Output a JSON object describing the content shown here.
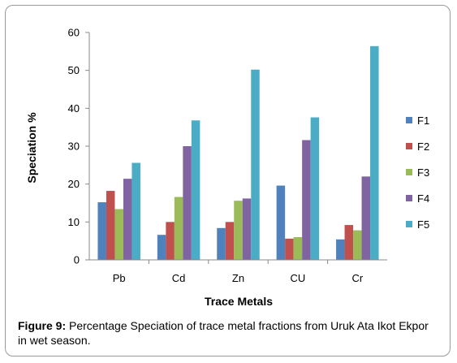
{
  "caption": {
    "label": "Figure 9:",
    "text": " Percentage Speciation of trace metal fractions from Uruk Ata Ikot Ekpor in wet season."
  },
  "chart_data": {
    "type": "bar",
    "title": "",
    "xlabel": "Trace Metals",
    "ylabel": "Speciation %",
    "ylim": [
      0,
      60
    ],
    "yticks": [
      0,
      10,
      20,
      30,
      40,
      50,
      60
    ],
    "grid": false,
    "legend_position": "right",
    "categories": [
      "Pb",
      "Cd",
      "Zn",
      "CU",
      "Cr"
    ],
    "series": [
      {
        "name": "F1",
        "color": "#4F81BD",
        "values": [
          15.2,
          6.6,
          8.4,
          19.6,
          5.4
        ]
      },
      {
        "name": "F2",
        "color": "#C0504D",
        "values": [
          18.2,
          10.0,
          10.0,
          5.6,
          9.2
        ]
      },
      {
        "name": "F3",
        "color": "#9BBB59",
        "values": [
          13.4,
          16.6,
          15.6,
          6.0,
          7.8
        ]
      },
      {
        "name": "F4",
        "color": "#8064A2",
        "values": [
          21.4,
          30.0,
          16.2,
          31.6,
          22.0
        ]
      },
      {
        "name": "F5",
        "color": "#4BACC6",
        "values": [
          25.6,
          36.8,
          50.2,
          37.6,
          56.4
        ]
      }
    ]
  }
}
